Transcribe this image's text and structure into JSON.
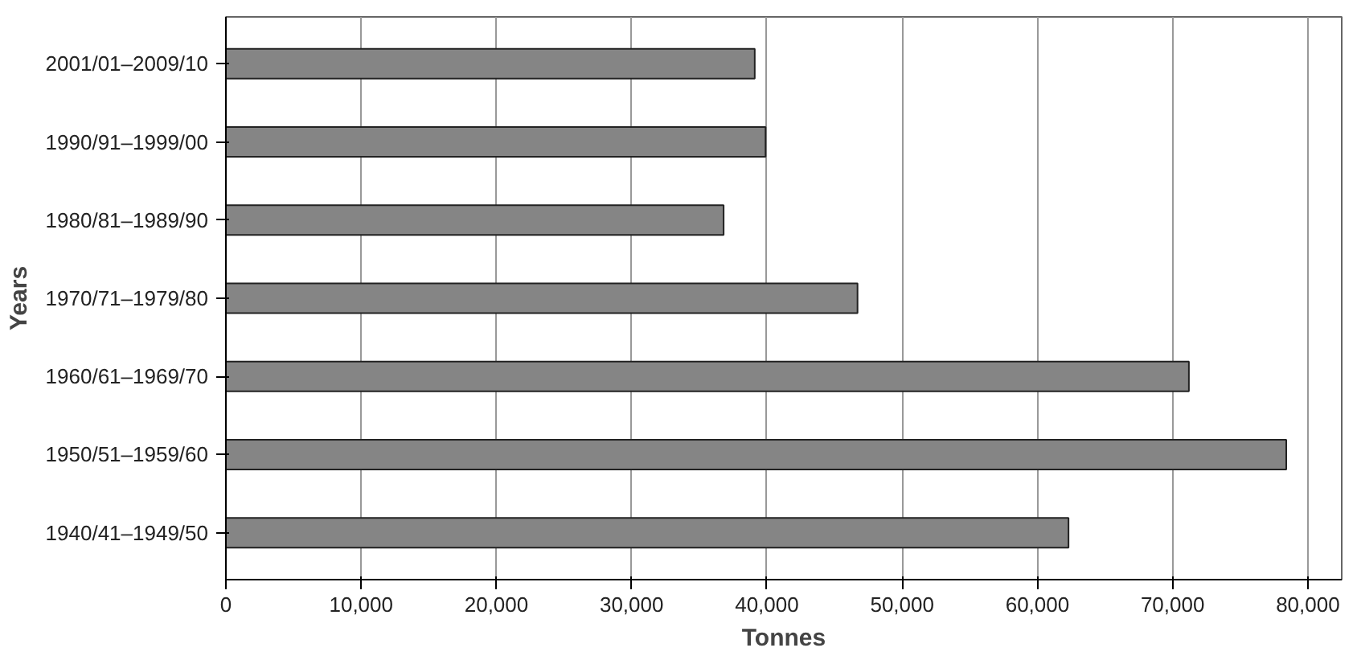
{
  "chart_data": {
    "type": "bar",
    "orientation": "horizontal",
    "xlabel": "Tonnes",
    "ylabel": "Years",
    "categories": [
      "2001/01–2009/10",
      "1990/91–1999/00",
      "1980/81–1989/90",
      "1970/71–1979/80",
      "1960/61–1969/70",
      "1950/51–1959/60",
      "1940/41–1949/50"
    ],
    "values": [
      39100,
      39900,
      36800,
      46700,
      71200,
      78400,
      62300
    ],
    "color": "#858585",
    "xlim": [
      0,
      82500
    ],
    "xticks": [
      {
        "value": 0,
        "label": "0"
      },
      {
        "value": 10000,
        "label": "10,000"
      },
      {
        "value": 20000,
        "label": "20,000"
      },
      {
        "value": 30000,
        "label": "30,000"
      },
      {
        "value": 40000,
        "label": "40,000"
      },
      {
        "value": 50000,
        "label": "50,000"
      },
      {
        "value": 60000,
        "label": "60,000"
      },
      {
        "value": 70000,
        "label": "70,000"
      },
      {
        "value": 80000,
        "label": "80,000"
      }
    ],
    "grid": "x"
  }
}
